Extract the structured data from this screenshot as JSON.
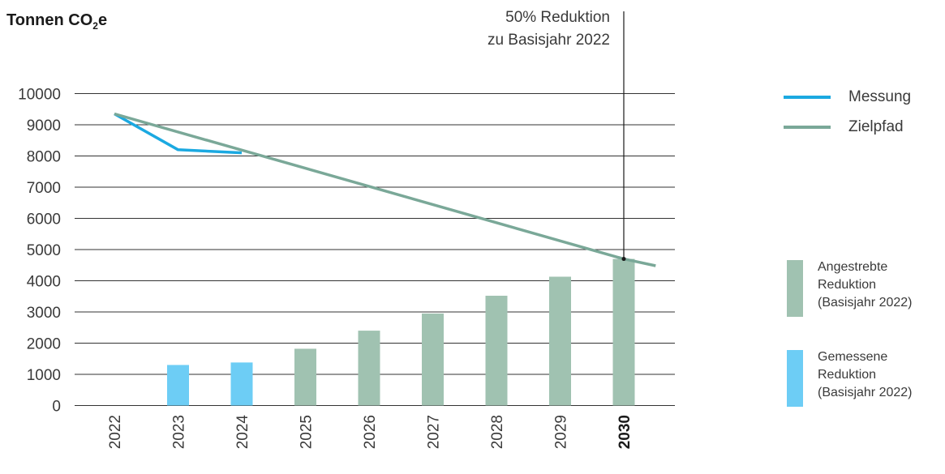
{
  "chart_data": {
    "type": "bar",
    "ylabel_main": "Tonnen CO",
    "ylabel_sub": "2",
    "ylabel_tail": "e",
    "categories": [
      "2022",
      "2023",
      "2024",
      "2025",
      "2026",
      "2027",
      "2028",
      "2029",
      "2030"
    ],
    "highlight_category": "2030",
    "ylim": [
      0,
      10000
    ],
    "yticks": [
      "0",
      "1000",
      "2000",
      "3000",
      "4000",
      "5000",
      "6000",
      "7000",
      "8000",
      "9000",
      "10000"
    ],
    "grid": true,
    "bars": [
      {
        "category": "2023",
        "value": 1300,
        "series": "gemessen"
      },
      {
        "category": "2024",
        "value": 1380,
        "series": "gemessen"
      },
      {
        "category": "2025",
        "value": 1820,
        "series": "angestrebt"
      },
      {
        "category": "2026",
        "value": 2400,
        "series": "angestrebt"
      },
      {
        "category": "2027",
        "value": 2950,
        "series": "angestrebt"
      },
      {
        "category": "2028",
        "value": 3520,
        "series": "angestrebt"
      },
      {
        "category": "2029",
        "value": 4130,
        "series": "angestrebt"
      },
      {
        "category": "2030",
        "value": 4700,
        "series": "angestrebt"
      }
    ],
    "lines": [
      {
        "name": "Messung",
        "color": "#1ba9e1",
        "points": [
          {
            "x": "2022",
            "y": 9350
          },
          {
            "x": "2023",
            "y": 8200
          },
          {
            "x": "2024",
            "y": 8100
          }
        ]
      },
      {
        "name": "Zielpfad",
        "color": "#7aa898",
        "points": [
          {
            "x": "2022",
            "y": 9350
          },
          {
            "x": "2030",
            "y": 4700
          },
          {
            "x": "2030.5",
            "y": 4480
          }
        ]
      }
    ],
    "annotation": {
      "line1": "50% Reduktion",
      "line2": "zu Basisjahr 2022",
      "x": "2030",
      "y": 4700
    },
    "legend": {
      "lines": [
        {
          "label": "Messung",
          "color": "#1ba9e1"
        },
        {
          "label": "Zielpfad",
          "color": "#7aa898"
        }
      ],
      "bars": [
        {
          "lines": [
            "Angestrebte",
            "Reduktion",
            "(Basisjahr 2022)"
          ],
          "color": "#a0c2b1"
        },
        {
          "lines": [
            "Gemessene",
            "Reduktion",
            "(Basisjahr 2022)"
          ],
          "color": "#6dcdf5"
        }
      ]
    },
    "colors": {
      "gemessen": "#6dcdf5",
      "angestrebt": "#a0c2b1",
      "grid": "#333333",
      "text": "#3a3a3a"
    }
  }
}
